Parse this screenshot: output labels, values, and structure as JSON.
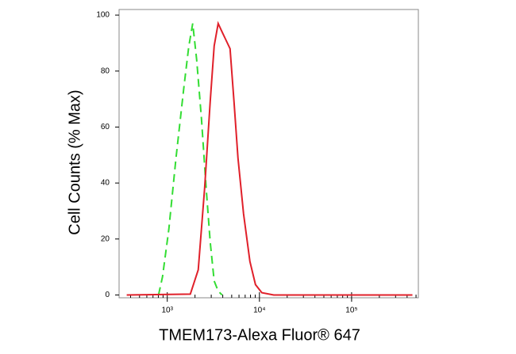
{
  "chart_data": {
    "type": "line",
    "x_label": "TMEM173-Alexa Fluor® 647",
    "y_label": "Cell Counts (% Max)",
    "xscale": "log",
    "xlim": [
      300,
      530000
    ],
    "ylim": [
      -1,
      102
    ],
    "xticks": [
      {
        "value": 1000,
        "label": "10³"
      },
      {
        "value": 10000,
        "label": "10⁴"
      },
      {
        "value": 100000,
        "label": "10⁵"
      }
    ],
    "xminorticks": [
      400,
      500,
      600,
      700,
      800,
      900,
      2000,
      3000,
      4000,
      5000,
      6000,
      7000,
      8000,
      9000,
      20000,
      30000,
      40000,
      50000,
      60000,
      70000,
      80000,
      90000,
      200000,
      300000,
      400000,
      500000
    ],
    "yticks": [
      0,
      20,
      40,
      60,
      80,
      100
    ],
    "series": [
      {
        "color": "#33dd33",
        "dash": true,
        "x": [
          804,
          888,
          1040,
          1244,
          1518,
          1710,
          1888,
          2085,
          2349,
          2644,
          2922,
          3228,
          3566,
          3933
        ],
        "values": [
          0,
          6.5,
          23.5,
          49,
          74.5,
          88.7,
          97,
          84,
          63,
          38,
          19,
          5,
          1.4,
          0
        ]
      },
      {
        "color": "#e0202a",
        "dash": false,
        "x": [
          363,
          1778,
          2168,
          2541,
          2922,
          3228,
          3566,
          3933,
          4345,
          4800,
          5300,
          5848,
          6725,
          7880,
          9060,
          10620,
          14300,
          457000
        ],
        "values": [
          0,
          0.3,
          9,
          38,
          69,
          89,
          97,
          94,
          91,
          88,
          69,
          49,
          29,
          12,
          3.7,
          0.8,
          0,
          0
        ]
      }
    ]
  }
}
